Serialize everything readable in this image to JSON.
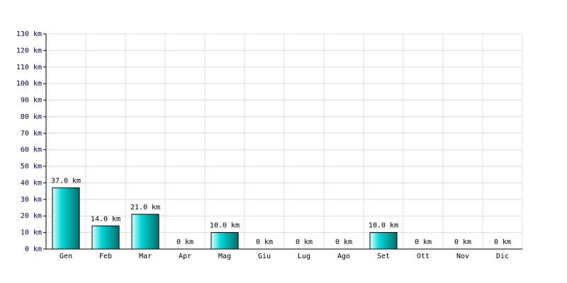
{
  "chart_data": {
    "type": "bar",
    "categories": [
      "Gen",
      "Feb",
      "Mar",
      "Apr",
      "Mag",
      "Giu",
      "Lug",
      "Ago",
      "Set",
      "Ott",
      "Nov",
      "Dic"
    ],
    "values": [
      37,
      14,
      21,
      0,
      10,
      0,
      0,
      0,
      10,
      0,
      0,
      0
    ],
    "value_labels": [
      "37.0 km",
      "14.0 km",
      "21.0 km",
      "0 km",
      "10.0 km",
      "0 km",
      "0 km",
      "0 km",
      "10.0 km",
      "0 km",
      "0 km",
      "0 km"
    ],
    "color": "#00d8d8",
    "ylim": [
      0,
      130
    ],
    "yticks": [
      {
        "value": 0,
        "label": "0 km"
      },
      {
        "value": 10,
        "label": "10 km"
      },
      {
        "value": 20,
        "label": "20 km"
      },
      {
        "value": 30,
        "label": "30 km"
      },
      {
        "value": 40,
        "label": "40 km"
      },
      {
        "value": 50,
        "label": "50 km"
      },
      {
        "value": 60,
        "label": "60 km"
      },
      {
        "value": 70,
        "label": "70 km"
      },
      {
        "value": 80,
        "label": "80 km"
      },
      {
        "value": 90,
        "label": "90 km"
      },
      {
        "value": 100,
        "label": "100 km"
      },
      {
        "value": 110,
        "label": "110 km"
      },
      {
        "value": 120,
        "label": "120 km"
      },
      {
        "value": 130,
        "label": "130 km"
      }
    ],
    "grid": true
  }
}
